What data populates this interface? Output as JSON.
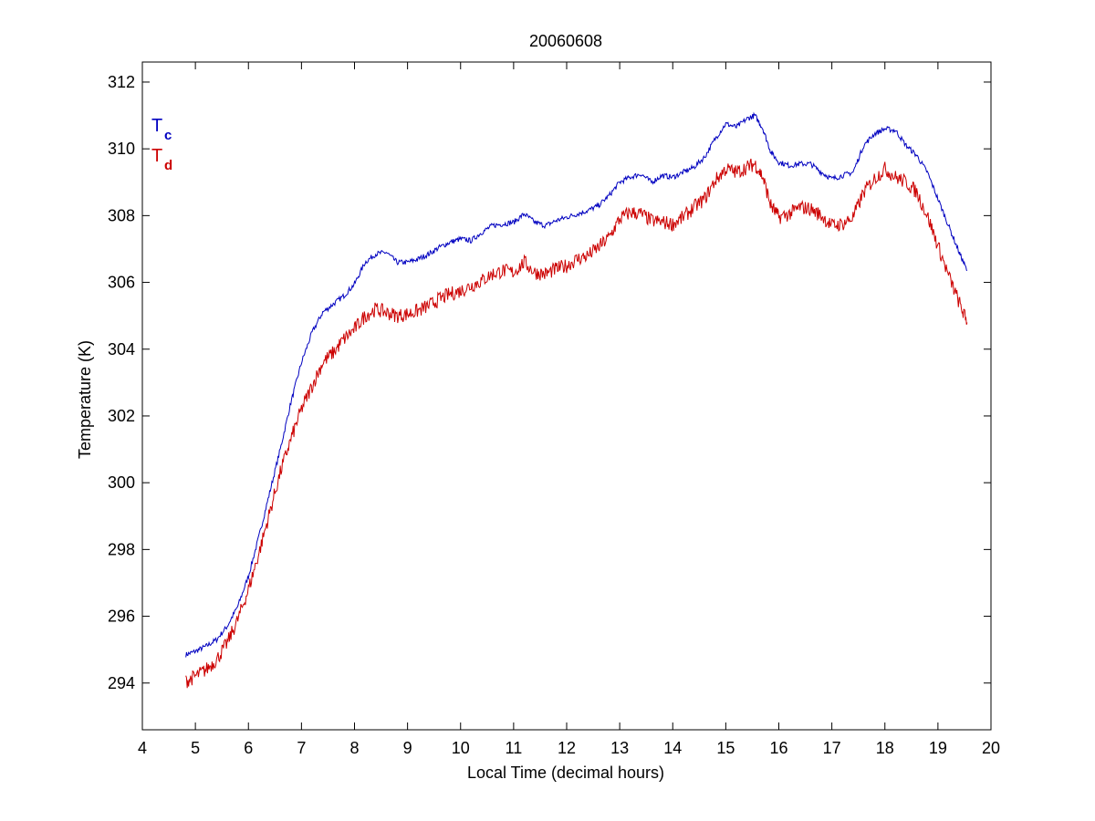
{
  "chart_data": {
    "type": "line",
    "title": "20060608",
    "xlabel": "Local Time (decimal hours)",
    "ylabel": "Temperature (K)",
    "xlim": [
      4,
      20
    ],
    "ylim": [
      292.6,
      312.6
    ],
    "xticks": [
      4,
      5,
      6,
      7,
      8,
      9,
      10,
      11,
      12,
      13,
      14,
      15,
      16,
      17,
      18,
      19,
      20
    ],
    "yticks": [
      294,
      296,
      298,
      300,
      302,
      304,
      306,
      308,
      310,
      312
    ],
    "xtick_labels": [
      "4",
      "5",
      "6",
      "7",
      "8",
      "9",
      "10",
      "11",
      "12",
      "13",
      "14",
      "15",
      "16",
      "17",
      "18",
      "19",
      "20"
    ],
    "ytick_labels": [
      "294",
      "296",
      "298",
      "300",
      "302",
      "304",
      "306",
      "308",
      "310",
      "312"
    ],
    "grid": false,
    "legend": {
      "placement": "top-left"
    },
    "series": [
      {
        "name": "T",
        "subscript": "c",
        "color": "#0000c0",
        "noise": 0.08,
        "points": [
          [
            4.82,
            294.85
          ],
          [
            5.0,
            294.95
          ],
          [
            5.2,
            295.1
          ],
          [
            5.4,
            295.3
          ],
          [
            5.6,
            295.7
          ],
          [
            5.8,
            296.3
          ],
          [
            6.0,
            297.2
          ],
          [
            6.2,
            298.4
          ],
          [
            6.4,
            299.7
          ],
          [
            6.6,
            301.0
          ],
          [
            6.8,
            302.4
          ],
          [
            7.0,
            303.6
          ],
          [
            7.2,
            304.5
          ],
          [
            7.4,
            305.1
          ],
          [
            7.6,
            305.35
          ],
          [
            7.8,
            305.6
          ],
          [
            8.0,
            305.95
          ],
          [
            8.2,
            306.6
          ],
          [
            8.4,
            306.85
          ],
          [
            8.6,
            306.9
          ],
          [
            8.8,
            306.6
          ],
          [
            9.0,
            306.6
          ],
          [
            9.2,
            306.7
          ],
          [
            9.4,
            306.85
          ],
          [
            9.6,
            307.05
          ],
          [
            9.8,
            307.2
          ],
          [
            10.0,
            307.3
          ],
          [
            10.2,
            307.25
          ],
          [
            10.4,
            307.5
          ],
          [
            10.6,
            307.7
          ],
          [
            10.8,
            307.75
          ],
          [
            11.0,
            307.8
          ],
          [
            11.2,
            308.05
          ],
          [
            11.4,
            307.8
          ],
          [
            11.6,
            307.7
          ],
          [
            11.8,
            307.85
          ],
          [
            12.0,
            307.95
          ],
          [
            12.2,
            308.05
          ],
          [
            12.4,
            308.15
          ],
          [
            12.6,
            308.3
          ],
          [
            12.8,
            308.6
          ],
          [
            13.0,
            309.0
          ],
          [
            13.2,
            309.15
          ],
          [
            13.4,
            309.25
          ],
          [
            13.6,
            309.0
          ],
          [
            13.8,
            309.2
          ],
          [
            14.0,
            309.15
          ],
          [
            14.2,
            309.3
          ],
          [
            14.4,
            309.45
          ],
          [
            14.6,
            309.75
          ],
          [
            14.8,
            310.3
          ],
          [
            15.0,
            310.75
          ],
          [
            15.2,
            310.65
          ],
          [
            15.4,
            310.9
          ],
          [
            15.55,
            311.0
          ],
          [
            15.7,
            310.6
          ],
          [
            15.85,
            309.9
          ],
          [
            16.0,
            309.6
          ],
          [
            16.2,
            309.5
          ],
          [
            16.4,
            309.55
          ],
          [
            16.6,
            309.55
          ],
          [
            16.8,
            309.3
          ],
          [
            17.0,
            309.1
          ],
          [
            17.2,
            309.2
          ],
          [
            17.4,
            309.3
          ],
          [
            17.6,
            310.1
          ],
          [
            17.8,
            310.45
          ],
          [
            18.0,
            310.6
          ],
          [
            18.2,
            310.55
          ],
          [
            18.4,
            310.1
          ],
          [
            18.6,
            309.8
          ],
          [
            18.8,
            309.3
          ],
          [
            19.0,
            308.5
          ],
          [
            19.2,
            307.7
          ],
          [
            19.4,
            306.9
          ],
          [
            19.55,
            306.35
          ]
        ]
      },
      {
        "name": "T",
        "subscript": "d",
        "color": "#cc0000",
        "noise": 0.22,
        "points": [
          [
            4.82,
            294.05
          ],
          [
            5.0,
            294.2
          ],
          [
            5.2,
            294.4
          ],
          [
            5.4,
            294.7
          ],
          [
            5.6,
            295.2
          ],
          [
            5.8,
            295.9
          ],
          [
            6.0,
            296.8
          ],
          [
            6.2,
            297.9
          ],
          [
            6.4,
            299.1
          ],
          [
            6.6,
            300.3
          ],
          [
            6.8,
            301.3
          ],
          [
            7.0,
            302.2
          ],
          [
            7.2,
            302.9
          ],
          [
            7.4,
            303.6
          ],
          [
            7.6,
            303.9
          ],
          [
            7.8,
            304.3
          ],
          [
            8.0,
            304.6
          ],
          [
            8.2,
            305.0
          ],
          [
            8.4,
            305.2
          ],
          [
            8.6,
            305.1
          ],
          [
            8.8,
            305.0
          ],
          [
            9.0,
            305.05
          ],
          [
            9.2,
            305.15
          ],
          [
            9.4,
            305.3
          ],
          [
            9.6,
            305.5
          ],
          [
            9.8,
            305.65
          ],
          [
            10.0,
            305.75
          ],
          [
            10.2,
            305.9
          ],
          [
            10.4,
            306.05
          ],
          [
            10.6,
            306.25
          ],
          [
            10.8,
            306.35
          ],
          [
            11.0,
            306.3
          ],
          [
            11.2,
            306.6
          ],
          [
            11.4,
            306.3
          ],
          [
            11.6,
            306.25
          ],
          [
            11.8,
            306.4
          ],
          [
            12.0,
            306.5
          ],
          [
            12.2,
            306.7
          ],
          [
            12.4,
            306.8
          ],
          [
            12.6,
            307.05
          ],
          [
            12.8,
            307.35
          ],
          [
            13.0,
            307.9
          ],
          [
            13.2,
            308.1
          ],
          [
            13.4,
            308.05
          ],
          [
            13.6,
            307.85
          ],
          [
            13.8,
            307.8
          ],
          [
            14.0,
            307.75
          ],
          [
            14.2,
            307.95
          ],
          [
            14.4,
            308.25
          ],
          [
            14.6,
            308.5
          ],
          [
            14.8,
            309.05
          ],
          [
            15.0,
            309.4
          ],
          [
            15.2,
            309.3
          ],
          [
            15.4,
            309.45
          ],
          [
            15.55,
            309.55
          ],
          [
            15.7,
            309.15
          ],
          [
            15.85,
            308.3
          ],
          [
            16.0,
            307.95
          ],
          [
            16.2,
            308.05
          ],
          [
            16.4,
            308.25
          ],
          [
            16.6,
            308.2
          ],
          [
            16.8,
            308.0
          ],
          [
            17.0,
            307.7
          ],
          [
            17.2,
            307.75
          ],
          [
            17.4,
            307.95
          ],
          [
            17.6,
            308.7
          ],
          [
            17.8,
            309.1
          ],
          [
            18.0,
            309.4
          ],
          [
            18.2,
            309.15
          ],
          [
            18.4,
            309.0
          ],
          [
            18.6,
            308.7
          ],
          [
            18.8,
            308.0
          ],
          [
            19.0,
            307.1
          ],
          [
            19.2,
            306.2
          ],
          [
            19.4,
            305.4
          ],
          [
            19.55,
            304.8
          ]
        ]
      }
    ]
  }
}
